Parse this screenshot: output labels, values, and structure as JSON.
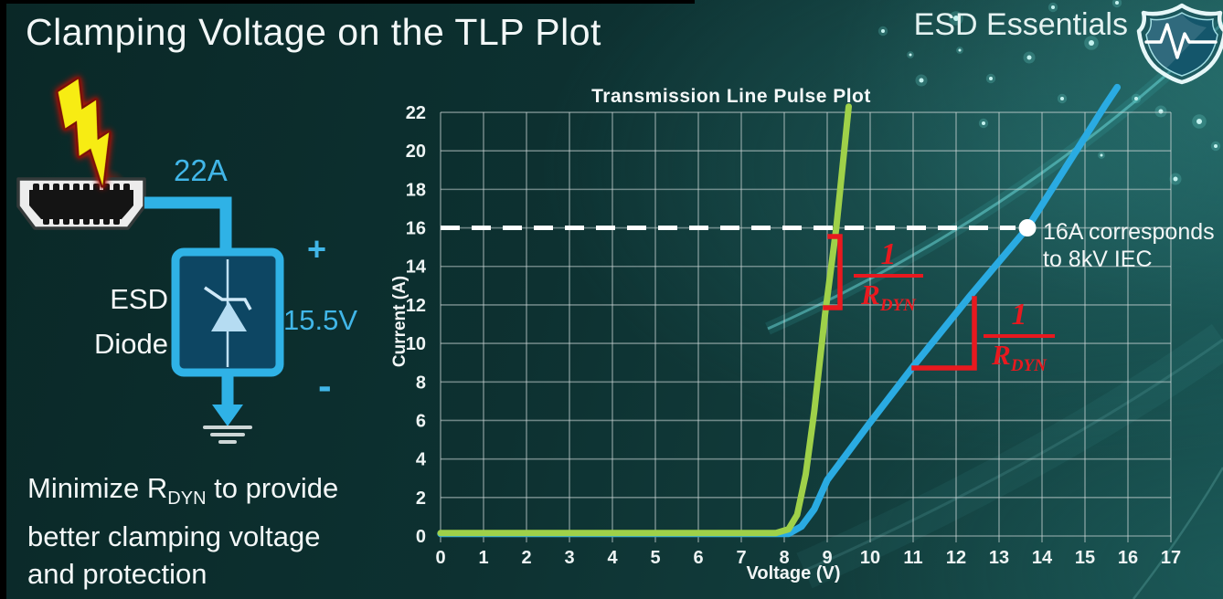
{
  "slide": {
    "title": "Clamping Voltage on the TLP Plot",
    "brand": "ESD Essentials",
    "note": {
      "line1_pre": "Minimize R",
      "line1_sub": "DYN",
      "line1_post": " to provide",
      "line2": "better clamping voltage",
      "line3": "and protection"
    }
  },
  "diagram": {
    "surge_current": "22A",
    "device_line1": "ESD",
    "device_line2": "Diode",
    "clamping_voltage": "15.5V",
    "plus": "+",
    "minus": "-",
    "accent_color": "#2fb2e6"
  },
  "chart_data": {
    "type": "line",
    "title": "Transmission Line Pulse Plot",
    "xlabel": "Voltage (V)",
    "ylabel": "Current (A)",
    "xlim": [
      0,
      17
    ],
    "ylim": [
      0,
      22
    ],
    "grid": true,
    "x_ticks": [
      "0",
      "1",
      "2",
      "3",
      "4",
      "5",
      "6",
      "7",
      "8",
      "9",
      "10",
      "11",
      "12",
      "13",
      "14",
      "15",
      "16",
      "17"
    ],
    "y_ticks": [
      "0",
      "2",
      "4",
      "6",
      "8",
      "10",
      "12",
      "14",
      "16",
      "18",
      "20",
      "22"
    ],
    "series": [
      {
        "name": "blue",
        "color": "#2aabe2",
        "points": [
          [
            0,
            0.12
          ],
          [
            8.1,
            0.12
          ],
          [
            8.4,
            0.5
          ],
          [
            8.7,
            1.4
          ],
          [
            9.0,
            2.9
          ],
          [
            10,
            5.9
          ],
          [
            11,
            8.8
          ],
          [
            12.3,
            12.4
          ],
          [
            13.66,
            16
          ],
          [
            15.45,
            22.3
          ],
          [
            15.75,
            23.3
          ]
        ]
      },
      {
        "name": "green",
        "color": "#9fd149",
        "points": [
          [
            0,
            0.15
          ],
          [
            7.8,
            0.15
          ],
          [
            8.1,
            0.35
          ],
          [
            8.3,
            1.1
          ],
          [
            8.5,
            3.2
          ],
          [
            8.7,
            6.5
          ],
          [
            8.95,
            11.5
          ],
          [
            9.21,
            16
          ],
          [
            9.5,
            22.3
          ]
        ]
      }
    ],
    "reference_line": {
      "i": 16,
      "style": "dashed",
      "color": "#ffffff"
    },
    "marker": {
      "v": 13.66,
      "i": 16,
      "label_line1": "16A corresponds",
      "label_line2": "to 8kV IEC"
    },
    "annotations": [
      {
        "target": "green",
        "numerator": "1",
        "denominator_base": "R",
        "denominator_sub": "DYN",
        "color": "#e8191f"
      },
      {
        "target": "blue",
        "numerator": "1",
        "denominator_base": "R",
        "denominator_sub": "DYN",
        "color": "#e8191f"
      }
    ]
  }
}
